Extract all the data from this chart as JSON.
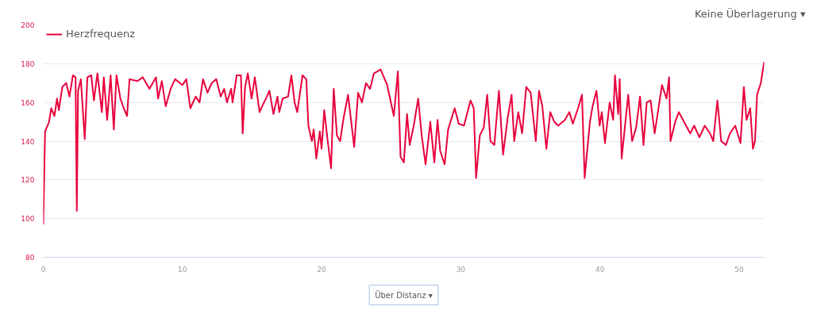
{
  "chart_data": {
    "type": "line",
    "x": [
      0,
      0.13,
      0.42,
      0.57,
      0.8,
      0.99,
      1.12,
      1.37,
      1.65,
      1.88,
      2.13,
      2.32,
      2.41,
      2.5,
      2.7,
      2.98,
      3.17,
      3.45,
      3.64,
      3.89,
      4.21,
      4.35,
      4.59,
      4.84,
      5.07,
      5.26,
      5.54,
      5.73,
      6.02,
      6.2,
      6.77,
      7.15,
      7.63,
      8.1,
      8.25,
      8.52,
      8.8,
      9.15,
      9.47,
      10,
      10.28,
      10.57,
      10.95,
      11.23,
      11.48,
      11.8,
      12.1,
      12.43,
      12.75,
      13.0,
      13.2,
      13.5,
      13.6,
      13.9,
      14.2,
      14.33,
      14.5,
      14.7,
      14.97,
      15.2,
      15.54,
      15.79,
      16.07,
      16.25,
      16.54,
      16.83,
      16.96,
      17.2,
      17.59,
      17.83,
      18.06,
      18.25,
      18.63,
      18.9,
      19.05,
      19.3,
      19.43,
      19.62,
      19.87,
      20,
      20.19,
      20.44,
      20.68,
      20.87,
      21.1,
      21.33,
      21.58,
      21.9,
      22.34,
      22.62,
      22.9,
      23.19,
      23.48,
      23.76,
      24.24,
      24.71,
      25.19,
      25.48,
      25.67,
      25.91,
      26.14,
      26.33,
      26.62,
      26.94,
      27.19,
      27.47,
      27.81,
      28.1,
      28.33,
      28.52,
      28.84,
      29.09,
      29.56,
      29.85,
      30.23,
      30.7,
      30.93,
      31.1,
      31.37,
      31.65,
      31.9,
      32.13,
      32.41,
      32.74,
      33.04,
      33.37,
      33.65,
      33.84,
      34.13,
      34.41,
      34.7,
      35.02,
      35.39,
      35.62,
      35.86,
      36.15,
      36.43,
      36.72,
      37.0,
      37.48,
      37.8,
      38.05,
      38.43,
      38.71,
      38.9,
      39.28,
      39.47,
      39.75,
      39.98,
      40.13,
      40.36,
      40.7,
      40.95,
      41.08,
      41.31,
      41.42,
      41.56,
      42.03,
      42.31,
      42.6,
      42.88,
      43.13,
      43.36,
      43.64,
      43.93,
      44.46,
      44.78,
      44.97,
      45.07,
      45.41,
      45.67,
      46.11,
      46.49,
      46.77,
      47.15,
      47.53,
      47.91,
      48.14,
      48.44,
      48.71,
      49.05,
      49.34,
      49.72,
      50.1,
      50.34,
      50.53,
      50.8,
      50.99,
      51.14,
      51.29,
      51.56,
      51.8
    ],
    "series": [
      {
        "name": "Herzfrequenz",
        "color": "#e8003c",
        "values": [
          97,
          145,
          150,
          157,
          153,
          162,
          156,
          168,
          170,
          163,
          174,
          173,
          104,
          166,
          172,
          141,
          173,
          174,
          161,
          175,
          155,
          173,
          151,
          174,
          146,
          174,
          162,
          158,
          153,
          172,
          171,
          173,
          167,
          173,
          162,
          171,
          158,
          167,
          172,
          169,
          172,
          157,
          163,
          160,
          172,
          165,
          170,
          172,
          163,
          167,
          160,
          167,
          160,
          174,
          174,
          144,
          168,
          175,
          162,
          173,
          155,
          159,
          163,
          166,
          154,
          163,
          155,
          162,
          163,
          174,
          160,
          155,
          174,
          172,
          148,
          140,
          146,
          131,
          145,
          136,
          156,
          140,
          126,
          167,
          143,
          140,
          152,
          164,
          137,
          165,
          160,
          170,
          167,
          175,
          177,
          169,
          153,
          176,
          132,
          129,
          154,
          138,
          148,
          162,
          143,
          128,
          150,
          129,
          151,
          135,
          128,
          146,
          157,
          149,
          148,
          161,
          157,
          121,
          143,
          147,
          164,
          140,
          138,
          166,
          133,
          152,
          164,
          140,
          155,
          144,
          168,
          165,
          140,
          166,
          158,
          136,
          155,
          150,
          148,
          151,
          155,
          149,
          157,
          164,
          121,
          150,
          158,
          166,
          148,
          155,
          139,
          160,
          151,
          174,
          154,
          172,
          131,
          164,
          140,
          147,
          163,
          138,
          160,
          161,
          144,
          169,
          162,
          173,
          140,
          150,
          155,
          149,
          144,
          148,
          142,
          148,
          144,
          140,
          161,
          140,
          138,
          144,
          148,
          139,
          168,
          151,
          157,
          136,
          140,
          164,
          170,
          181
        ]
      }
    ],
    "xlim": [
      0,
      51.8
    ],
    "ylim": [
      80,
      200
    ],
    "xticks": [
      0,
      10,
      20,
      30,
      40,
      50
    ],
    "yticks": [
      80,
      100,
      120,
      140,
      160,
      180,
      200
    ],
    "grid": "y",
    "legend": "top left",
    "line_style": "solid",
    "annotations": [
      "Keine Überlagerung ▾",
      "Über Distanz ▾"
    ]
  }
}
